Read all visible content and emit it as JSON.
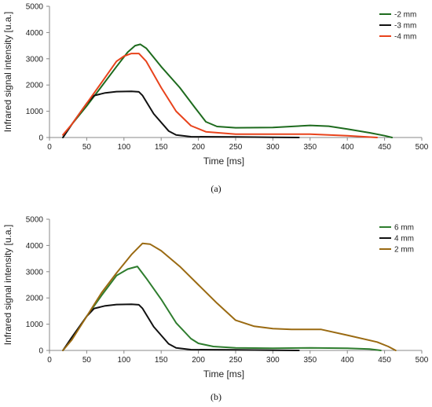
{
  "chart_data": [
    {
      "type": "line",
      "caption": "(a)",
      "xlabel": "Time [ms]",
      "ylabel": "Infrared signal intensity [u.a.]",
      "xlim": [
        0,
        500
      ],
      "ylim": [
        0,
        5000
      ],
      "xticks": [
        0,
        50,
        100,
        150,
        200,
        250,
        300,
        350,
        400,
        450,
        500
      ],
      "yticks": [
        0,
        1000,
        2000,
        3000,
        4000,
        5000
      ],
      "grid": false,
      "legend": "top-right",
      "series": [
        {
          "name": "-2 mm",
          "color": "#1e6b1e",
          "x": [
            18,
            30,
            50,
            70,
            90,
            105,
            115,
            122,
            130,
            150,
            175,
            195,
            210,
            225,
            250,
            300,
            350,
            375,
            400,
            430,
            450,
            460
          ],
          "y": [
            0,
            500,
            1200,
            1950,
            2700,
            3250,
            3500,
            3550,
            3400,
            2700,
            1900,
            1150,
            600,
            420,
            370,
            380,
            460,
            430,
            320,
            180,
            70,
            0
          ]
        },
        {
          "name": "-3 mm",
          "color": "#111111",
          "x": [
            18,
            30,
            50,
            60,
            75,
            90,
            110,
            120,
            125,
            140,
            160,
            170,
            190,
            250,
            300,
            335
          ],
          "y": [
            0,
            500,
            1300,
            1600,
            1700,
            1750,
            1760,
            1740,
            1600,
            900,
            250,
            100,
            30,
            20,
            10,
            0
          ]
        },
        {
          "name": "-4 mm",
          "color": "#e8431c",
          "x": [
            18,
            30,
            50,
            70,
            90,
            100,
            110,
            120,
            130,
            150,
            170,
            190,
            210,
            250,
            300,
            350,
            400,
            440
          ],
          "y": [
            100,
            500,
            1300,
            2100,
            2900,
            3100,
            3200,
            3200,
            2900,
            1900,
            1000,
            450,
            220,
            130,
            130,
            130,
            70,
            0
          ]
        }
      ]
    },
    {
      "type": "line",
      "caption": "(b)",
      "xlabel": "Time [ms]",
      "ylabel": "Infrared signal intensity [u.a.]",
      "xlim": [
        0,
        500
      ],
      "ylim": [
        0,
        5000
      ],
      "xticks": [
        0,
        50,
        100,
        150,
        200,
        250,
        300,
        350,
        400,
        450,
        500
      ],
      "yticks": [
        0,
        1000,
        2000,
        3000,
        4000,
        5000
      ],
      "grid": false,
      "legend": "top-right",
      "series": [
        {
          "name": "6 mm",
          "color": "#2e7d2e",
          "x": [
            18,
            30,
            50,
            70,
            90,
            105,
            118,
            130,
            150,
            170,
            190,
            200,
            220,
            250,
            300,
            350,
            400,
            430,
            445
          ],
          "y": [
            0,
            450,
            1300,
            2100,
            2850,
            3100,
            3200,
            2750,
            1950,
            1050,
            450,
            270,
            150,
            100,
            80,
            100,
            80,
            50,
            0
          ]
        },
        {
          "name": "4 mm",
          "color": "#111111",
          "x": [
            18,
            30,
            50,
            60,
            75,
            90,
            110,
            120,
            125,
            140,
            160,
            170,
            190,
            250,
            300,
            335
          ],
          "y": [
            0,
            500,
            1300,
            1600,
            1700,
            1750,
            1760,
            1740,
            1600,
            900,
            250,
            100,
            30,
            20,
            10,
            0
          ]
        },
        {
          "name": "2 mm",
          "color": "#9a6a12",
          "x": [
            18,
            30,
            50,
            70,
            90,
            110,
            125,
            135,
            150,
            175,
            200,
            225,
            250,
            275,
            300,
            325,
            350,
            365,
            400,
            440,
            455,
            465
          ],
          "y": [
            0,
            400,
            1300,
            2200,
            2950,
            3650,
            4080,
            4050,
            3800,
            3200,
            2500,
            1800,
            1150,
            920,
            830,
            800,
            800,
            800,
            580,
            320,
            150,
            0
          ]
        }
      ]
    }
  ]
}
